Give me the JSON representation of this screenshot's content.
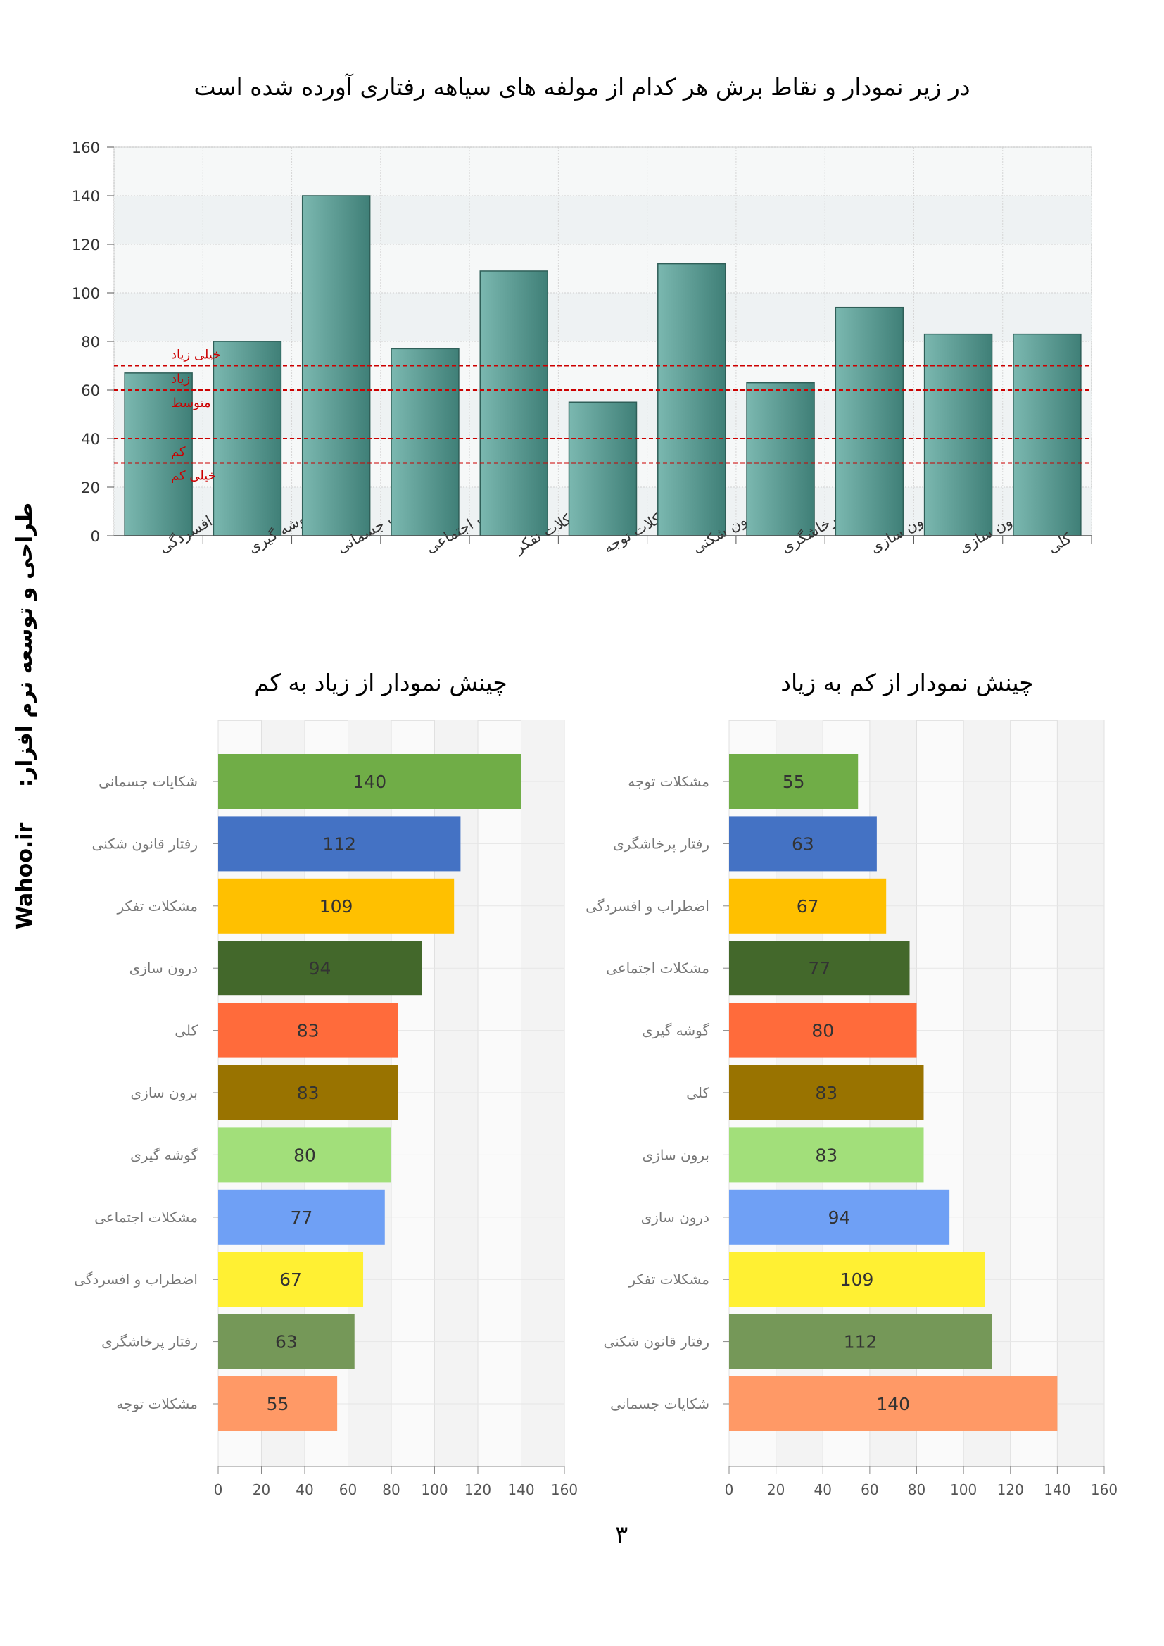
{
  "title": "در زیر نمودار و نقاط برش هر کدام از مولفه های سیاهه رفتاری آورده شده است",
  "side_text": {
    "line1": "طراحی و توسعه نرم افزار:",
    "line2": "Wahoo.ir"
  },
  "page_number": "۳",
  "chart_data": [
    {
      "type": "bar",
      "title": "",
      "categories": [
        "اضطراب و افسردگی",
        "گوشه گیری",
        "شکایات جسمانی",
        "مشکلات اجتماعی",
        "مشکلات تفکر",
        "مشکلات توجه",
        "رفتار قانون شکنی",
        "رفتار پرخاشگری",
        "درون سازی",
        "برون سازی",
        "کلی"
      ],
      "values": [
        67,
        80,
        140,
        77,
        109,
        55,
        112,
        63,
        94,
        83,
        83
      ],
      "ylim": [
        0,
        160
      ],
      "yticks": [
        0,
        20,
        40,
        60,
        80,
        100,
        120,
        140,
        160
      ],
      "grid": true,
      "thresholds": [
        {
          "value": 70,
          "label_above": "خیلی زیاد"
        },
        {
          "value": 60,
          "label_above": "زیاد",
          "label_below": "متوسط"
        },
        {
          "value": 40
        },
        {
          "value": 30,
          "label_above": "کم",
          "label_below": "خیلی کم"
        }
      ],
      "bar_color": "#4f9990",
      "threshold_color": "#cc0000"
    },
    {
      "type": "bar",
      "orientation": "horizontal",
      "title": "چینش نمودار از زیاد به کم",
      "categories": [
        "شکایات جسمانی",
        "رفتار قانون شکنی",
        "مشکلات تفکر",
        "درون سازی",
        "کلی",
        "برون سازی",
        "گوشه گیری",
        "مشکلات اجتماعی",
        "اضطراب و افسردگی",
        "رفتار پرخاشگری",
        "مشکلات توجه"
      ],
      "values": [
        140,
        112,
        109,
        94,
        83,
        83,
        80,
        77,
        67,
        63,
        55
      ],
      "xlim": [
        0,
        160
      ],
      "xticks": [
        0,
        20,
        40,
        60,
        80,
        100,
        120,
        140,
        160
      ],
      "colors": [
        "#70ad47",
        "#4472c4",
        "#ffc000",
        "#43682b",
        "#ff6b3b",
        "#997300",
        "#a2df7a",
        "#6fa0f5",
        "#fff033",
        "#759858",
        "#ff9966"
      ]
    },
    {
      "type": "bar",
      "orientation": "horizontal",
      "title": "چینش نمودار از کم به زیاد",
      "categories": [
        "مشکلات توجه",
        "رفتار پرخاشگری",
        "اضطراب و افسردگی",
        "مشکلات اجتماعی",
        "گوشه گیری",
        "کلی",
        "برون سازی",
        "درون سازی",
        "مشکلات تفکر",
        "رفتار قانون شکنی",
        "شکایات جسمانی"
      ],
      "values": [
        55,
        63,
        67,
        77,
        80,
        83,
        83,
        94,
        109,
        112,
        140
      ],
      "xlim": [
        0,
        160
      ],
      "xticks": [
        0,
        20,
        40,
        60,
        80,
        100,
        120,
        140,
        160
      ],
      "colors": [
        "#70ad47",
        "#4472c4",
        "#ffc000",
        "#43682b",
        "#ff6b3b",
        "#997300",
        "#a2df7a",
        "#6fa0f5",
        "#fff033",
        "#759858",
        "#ff9966"
      ]
    }
  ]
}
